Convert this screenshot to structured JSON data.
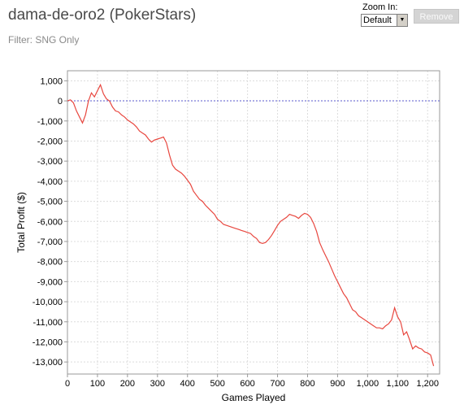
{
  "header": {
    "title": "dama-de-oro2 (PokerStars)",
    "filter": "Filter: SNG Only"
  },
  "controls": {
    "zoom_label": "Zoom In:",
    "zoom_value": "Default",
    "remove_label": "Remove"
  },
  "colors": {
    "line": "#e8473f",
    "zero_line": "#5a5acd",
    "grid": "#dcdcdc"
  },
  "chart_data": {
    "type": "line",
    "xlabel": "Games Played",
    "ylabel": "Total Profit ($)",
    "xlim": [
      0,
      1240
    ],
    "ylim": [
      -13600,
      1500
    ],
    "x_ticks": [
      0,
      100,
      200,
      300,
      400,
      500,
      600,
      700,
      800,
      900,
      1000,
      1100,
      1200
    ],
    "x_tick_labels": [
      "0",
      "100",
      "200",
      "300",
      "400",
      "500",
      "600",
      "700",
      "800",
      "900",
      "1,000",
      "1,100",
      "1,200"
    ],
    "y_ticks": [
      1000,
      0,
      -1000,
      -2000,
      -3000,
      -4000,
      -5000,
      -6000,
      -7000,
      -8000,
      -9000,
      -10000,
      -11000,
      -12000,
      -13000
    ],
    "y_tick_labels": [
      "1,000",
      "0",
      "-1,000",
      "-2,000",
      "-3,000",
      "-4,000",
      "-5,000",
      "-6,000",
      "-7,000",
      "-8,000",
      "-9,000",
      "-10,000",
      "-11,000",
      "-12,000",
      "-13,000"
    ],
    "zero_line": true,
    "grid": true,
    "series": [
      {
        "x": [
          0,
          10,
          20,
          30,
          40,
          50,
          60,
          70,
          80,
          90,
          100,
          110,
          120,
          130,
          140,
          150,
          160,
          170,
          180,
          190,
          200,
          210,
          220,
          230,
          240,
          250,
          260,
          270,
          280,
          290,
          300,
          310,
          320,
          330,
          340,
          350,
          360,
          370,
          380,
          390,
          400,
          410,
          420,
          430,
          440,
          450,
          460,
          470,
          480,
          490,
          500,
          510,
          520,
          530,
          540,
          550,
          560,
          570,
          580,
          590,
          600,
          610,
          620,
          630,
          640,
          650,
          660,
          670,
          680,
          690,
          700,
          710,
          720,
          730,
          740,
          750,
          760,
          770,
          780,
          790,
          800,
          810,
          820,
          830,
          840,
          850,
          860,
          870,
          880,
          890,
          900,
          910,
          920,
          930,
          940,
          950,
          960,
          970,
          980,
          990,
          1000,
          1010,
          1020,
          1030,
          1040,
          1050,
          1060,
          1070,
          1080,
          1090,
          1100,
          1110,
          1120,
          1130,
          1140,
          1150,
          1160,
          1170,
          1180,
          1190,
          1200,
          1210,
          1220
        ],
        "y": [
          0,
          50,
          -100,
          -500,
          -800,
          -1100,
          -700,
          0,
          400,
          200,
          500,
          800,
          350,
          100,
          0,
          -300,
          -500,
          -550,
          -700,
          -800,
          -950,
          -1050,
          -1150,
          -1300,
          -1500,
          -1600,
          -1700,
          -1900,
          -2050,
          -1950,
          -1900,
          -1850,
          -1800,
          -2100,
          -2700,
          -3200,
          -3400,
          -3500,
          -3600,
          -3750,
          -3950,
          -4150,
          -4500,
          -4700,
          -4900,
          -5000,
          -5200,
          -5350,
          -5500,
          -5650,
          -5900,
          -6000,
          -6150,
          -6200,
          -6250,
          -6300,
          -6350,
          -6400,
          -6450,
          -6500,
          -6550,
          -6600,
          -6750,
          -6850,
          -7050,
          -7100,
          -7050,
          -6900,
          -6700,
          -6450,
          -6200,
          -6000,
          -5900,
          -5800,
          -5650,
          -5700,
          -5750,
          -5850,
          -5700,
          -5600,
          -5650,
          -5800,
          -6100,
          -6500,
          -7050,
          -7400,
          -7700,
          -8000,
          -8350,
          -8700,
          -9000,
          -9300,
          -9600,
          -9800,
          -10100,
          -10400,
          -10500,
          -10700,
          -10800,
          -10900,
          -11000,
          -11100,
          -11200,
          -11300,
          -11300,
          -11350,
          -11200,
          -11100,
          -10900,
          -10300,
          -10750,
          -11000,
          -11650,
          -11500,
          -11900,
          -12350,
          -12200,
          -12300,
          -12350,
          -12500,
          -12550,
          -12650,
          -13200
        ]
      }
    ]
  }
}
